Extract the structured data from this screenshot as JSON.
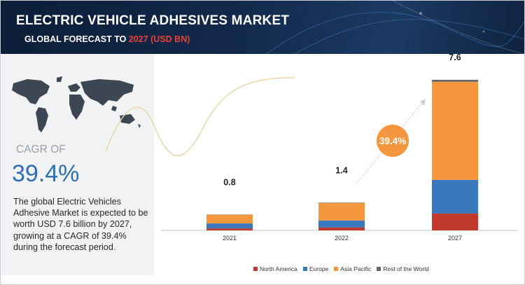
{
  "header": {
    "title": "ELECTRIC VEHICLE ADHESIVES MARKET",
    "subtitle_prefix": "GLOBAL FORECAST TO",
    "subtitle_highlight": "2027 (USD BN)"
  },
  "sidebar": {
    "cagr_label": "CAGR OF",
    "cagr_value": "39.4%",
    "description": "The global Electric Vehicles Adhesive Market is expected to be worth USD 7.6 billion by 2027, growing at a CAGR of 39.4% during the forecast period",
    "description_end": "."
  },
  "chart_data": {
    "type": "bar",
    "stacked": true,
    "title": "Electric Vehicle Adhesives Market, Global Forecast to 2027 (USD BN)",
    "categories": [
      "2021",
      "2022",
      "2027"
    ],
    "totals": [
      "0.8",
      "1.4",
      "7.6"
    ],
    "total_values": [
      0.8,
      1.4,
      7.6
    ],
    "series": [
      {
        "name": "North America",
        "color": "#c0392b",
        "values": [
          0.1,
          0.15,
          0.85
        ]
      },
      {
        "name": "Europe",
        "color": "#3a78bd",
        "values": [
          0.25,
          0.35,
          1.7
        ]
      },
      {
        "name": "Asia Pacific",
        "color": "#f4973f",
        "values": [
          0.44,
          0.88,
          4.95
        ]
      },
      {
        "name": "Rest of the World",
        "color": "#666666",
        "values": [
          0.01,
          0.02,
          0.1
        ]
      }
    ],
    "ylim": [
      0,
      8.2
    ],
    "cagr_badge": "39.4%",
    "cagr_badge_color": "#f4973f",
    "xlabel": "",
    "ylabel": ""
  }
}
